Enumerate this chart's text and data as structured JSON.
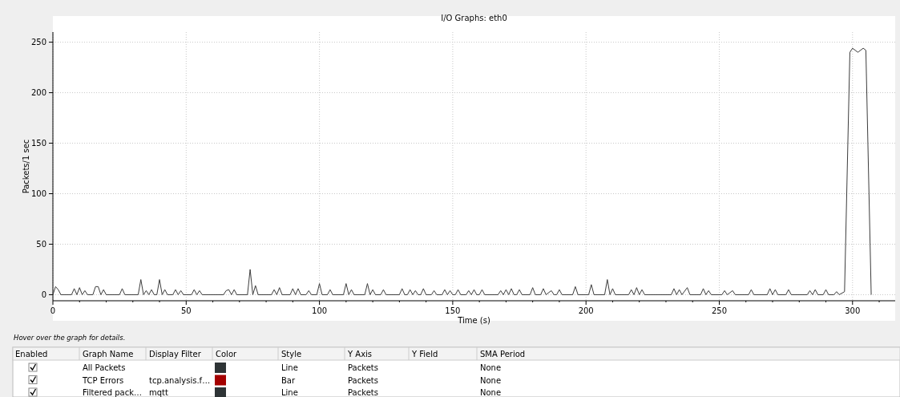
{
  "chart_data": [
    {
      "type": "line",
      "title": "I/O Graphs: eth0",
      "xlabel": "Time (s)",
      "ylabel": "Packets/1 sec",
      "xlim": [
        0,
        316
      ],
      "ylim": [
        -6,
        260
      ],
      "xticks": [
        0,
        {
          "value": 10,
          "label": null
        },
        {
          "value": 20,
          "label": null
        },
        {
          "value": 30,
          "label": null
        },
        {
          "value": 40,
          "label": null
        },
        50,
        {
          "value": 60,
          "label": null
        },
        {
          "value": 70,
          "label": null
        },
        {
          "value": 80,
          "label": null
        },
        {
          "value": 90,
          "label": null
        },
        100,
        {
          "value": 110,
          "label": null
        },
        {
          "value": 120,
          "label": null
        },
        {
          "value": 130,
          "label": null
        },
        {
          "value": 140,
          "label": null
        },
        150,
        {
          "value": 160,
          "label": null
        },
        {
          "value": 170,
          "label": null
        },
        {
          "value": 180,
          "label": null
        },
        {
          "value": 190,
          "label": null
        },
        200,
        {
          "value": 210,
          "label": null
        },
        {
          "value": 220,
          "label": null
        },
        {
          "value": 230,
          "label": null
        },
        {
          "value": 240,
          "label": null
        },
        250,
        {
          "value": 260,
          "label": null
        },
        {
          "value": 270,
          "label": null
        },
        {
          "value": 280,
          "label": null
        },
        {
          "value": 290,
          "label": null
        },
        300,
        {
          "value": 310,
          "label": null
        }
      ],
      "yticks": [
        0,
        50,
        100,
        150,
        200,
        250
      ],
      "grid": true,
      "series": [
        {
          "color": "#3c3c3c",
          "x": [
            0,
            1,
            2,
            3,
            7,
            8,
            9,
            10,
            11,
            12,
            13,
            15,
            16,
            17,
            18,
            19,
            20,
            25,
            26,
            27,
            32,
            33,
            34,
            35,
            36,
            37,
            38,
            39,
            40,
            41,
            42,
            43,
            45,
            46,
            47,
            48,
            49,
            52,
            53,
            54,
            55,
            56,
            64,
            65,
            66,
            67,
            68,
            69,
            73,
            74,
            75,
            76,
            77,
            82,
            83,
            84,
            85,
            86,
            89,
            90,
            91,
            92,
            93,
            95,
            96,
            97,
            99,
            100,
            101,
            103,
            104,
            105,
            109,
            110,
            111,
            112,
            113,
            117,
            118,
            119,
            120,
            121,
            123,
            124,
            125,
            130,
            131,
            132,
            133,
            134,
            135,
            136,
            137,
            138,
            139,
            140,
            142,
            143,
            144,
            146,
            147,
            148,
            149,
            150,
            151,
            152,
            153,
            155,
            156,
            157,
            158,
            159,
            160,
            161,
            162,
            167,
            168,
            169,
            170,
            171,
            172,
            173,
            174,
            175,
            176,
            179,
            180,
            181,
            183,
            184,
            185,
            187,
            188,
            189,
            190,
            191,
            195,
            196,
            197,
            201,
            202,
            203,
            207,
            208,
            209,
            210,
            211,
            216,
            217,
            218,
            219,
            220,
            221,
            222,
            232,
            233,
            234,
            235,
            236,
            238,
            239,
            243,
            244,
            245,
            246,
            247,
            251,
            252,
            253,
            255,
            256,
            261,
            262,
            263,
            268,
            269,
            270,
            271,
            272,
            275,
            276,
            277,
            283,
            284,
            285,
            286,
            287,
            289,
            290,
            291,
            293,
            294,
            295,
            297,
            299,
            300,
            302,
            304,
            305,
            307
          ],
          "values": [
            0,
            8,
            5,
            0,
            0,
            6,
            0,
            7,
            0,
            4,
            0,
            0,
            8,
            8,
            0,
            5,
            0,
            0,
            6,
            0,
            0,
            15,
            0,
            4,
            0,
            5,
            0,
            0,
            15,
            0,
            5,
            0,
            0,
            5,
            0,
            4,
            0,
            0,
            5,
            0,
            4,
            0,
            0,
            4,
            5,
            0,
            5,
            0,
            0,
            25,
            0,
            9,
            0,
            0,
            5,
            0,
            7,
            0,
            0,
            6,
            0,
            6,
            0,
            0,
            4,
            0,
            0,
            11,
            0,
            0,
            5,
            0,
            0,
            11,
            0,
            5,
            0,
            0,
            11,
            0,
            5,
            0,
            0,
            5,
            0,
            0,
            6,
            0,
            0,
            5,
            0,
            4,
            0,
            0,
            6,
            0,
            0,
            4,
            0,
            0,
            5,
            0,
            4,
            0,
            0,
            5,
            0,
            0,
            4,
            0,
            5,
            0,
            0,
            5,
            0,
            0,
            4,
            0,
            5,
            0,
            6,
            0,
            0,
            5,
            0,
            0,
            7,
            0,
            0,
            6,
            0,
            4,
            0,
            0,
            5,
            0,
            0,
            8,
            0,
            0,
            10,
            0,
            0,
            15,
            0,
            6,
            0,
            0,
            5,
            0,
            7,
            0,
            5,
            0,
            0,
            6,
            0,
            5,
            0,
            7,
            0,
            0,
            6,
            0,
            4,
            0,
            0,
            4,
            0,
            4,
            0,
            0,
            5,
            0,
            0,
            6,
            0,
            5,
            0,
            0,
            5,
            0,
            0,
            4,
            0,
            5,
            0,
            0,
            5,
            0,
            0,
            3,
            0,
            3,
            240,
            244,
            240,
            244,
            242,
            0
          ]
        }
      ]
    },
    {
      "type": "other",
      "colors": [
        "#2e3436",
        "#a40000",
        "#2e3436"
      ],
      "annotations": [
        "Hover over the graph for details.",
        "Enabled",
        "Graph Name",
        "Display Filter",
        "Color",
        "Style",
        "Y Axis",
        "Y Field",
        "SMA Period",
        null,
        "All Packets",
        null,
        null,
        "Line",
        "Packets",
        null,
        "None",
        null,
        "TCP Errors",
        "tcp.analysis.f…",
        null,
        "Bar",
        "Packets",
        null,
        "None",
        null,
        "Filtered pack…",
        "mqtt",
        null,
        "Line",
        "Packets",
        null,
        "None"
      ]
    }
  ]
}
